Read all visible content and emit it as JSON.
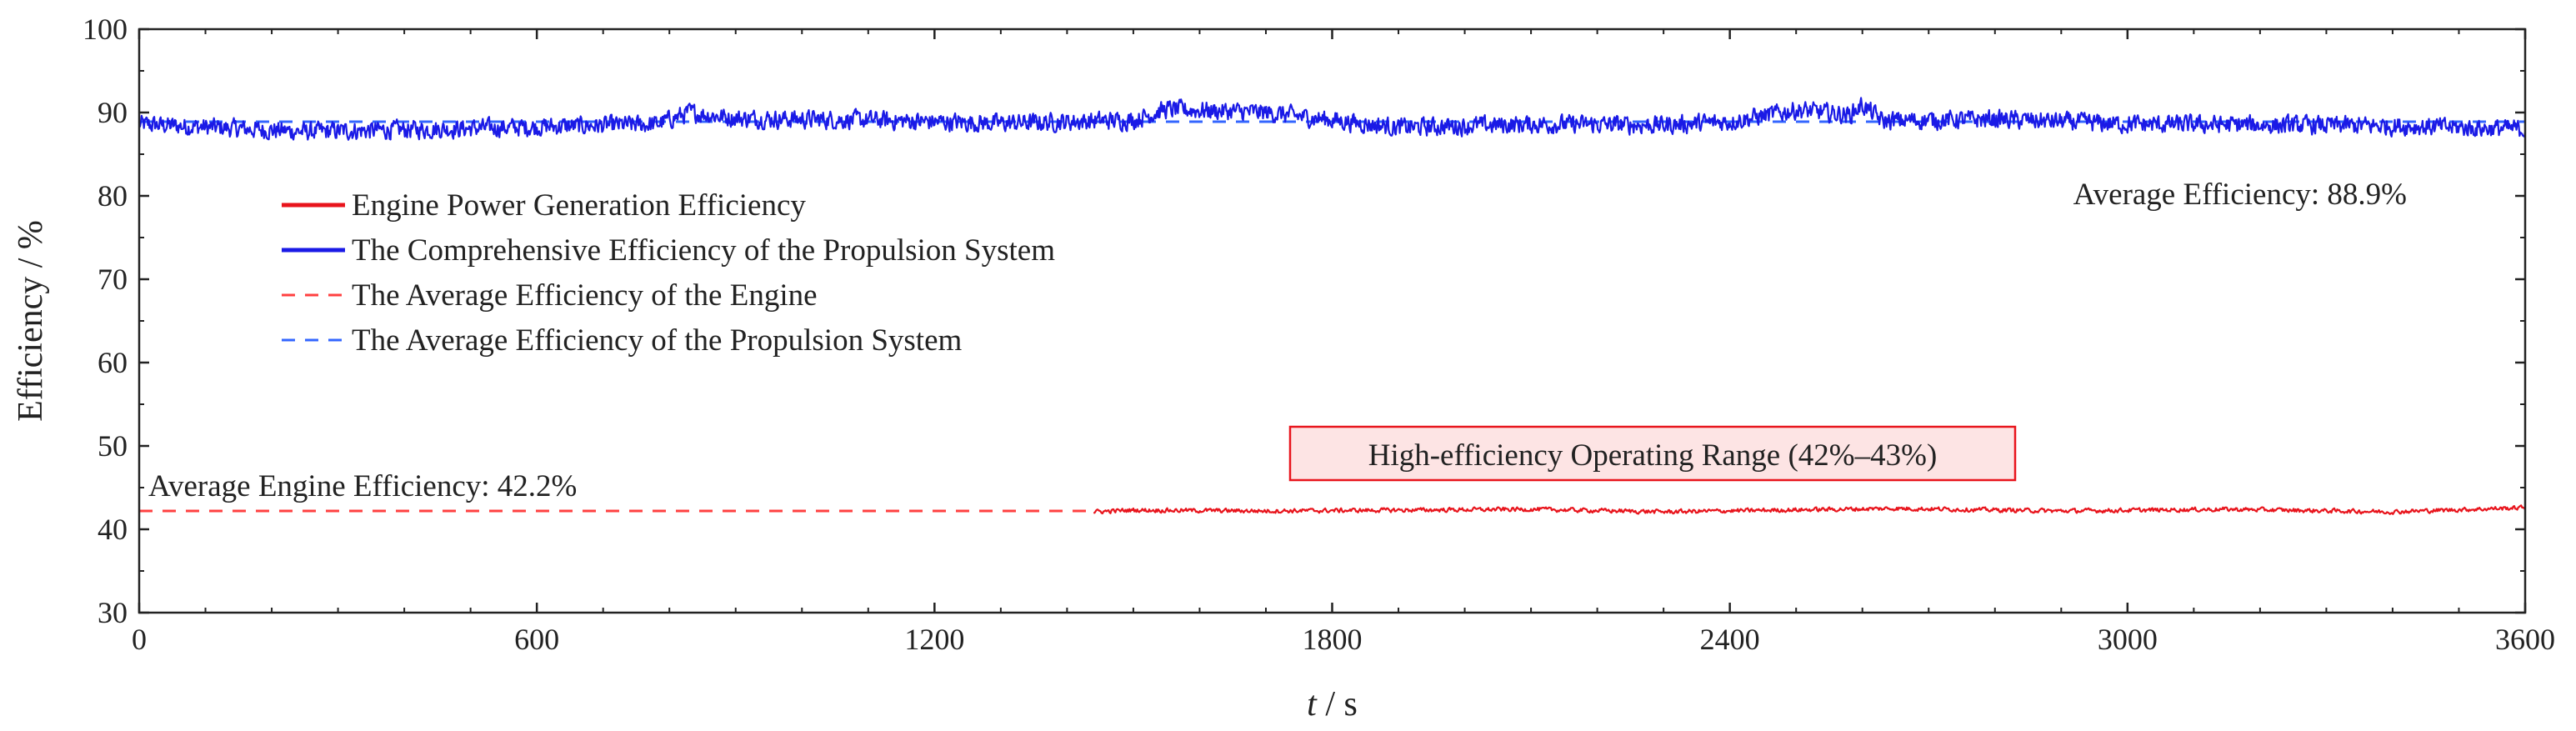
{
  "chart_data": {
    "type": "line",
    "xlabel_italic": "t",
    "xlabel_unit": " / s",
    "ylabel": "Efficiency / %",
    "xlim": [
      0,
      3600
    ],
    "ylim": [
      30,
      100
    ],
    "x_ticks": [
      0,
      600,
      1200,
      1800,
      2400,
      3000,
      3600
    ],
    "y_ticks": [
      30,
      40,
      50,
      60,
      70,
      80,
      90,
      100
    ],
    "grid": false,
    "legend_position": "upper-left",
    "series": [
      {
        "name": "Engine Power Generation Efficiency",
        "color": "#e8141c",
        "style": "solid",
        "x_range": [
          1440,
          3600
        ],
        "profile": [
          [
            1440,
            42.1
          ],
          [
            1500,
            42.3
          ],
          [
            1700,
            42.2
          ],
          [
            2100,
            42.4
          ],
          [
            2300,
            42.1
          ],
          [
            2650,
            42.5
          ],
          [
            2900,
            42.2
          ],
          [
            3150,
            42.4
          ],
          [
            3400,
            42.1
          ],
          [
            3600,
            42.6
          ]
        ],
        "noise_amplitude": 0.35
      },
      {
        "name": "The Comprehensive Efficiency of the Propulsion System",
        "color": "#1a1ae6",
        "style": "solid",
        "x_range": [
          0,
          3600
        ],
        "profile": [
          [
            0,
            88.6
          ],
          [
            250,
            87.7
          ],
          [
            500,
            88.1
          ],
          [
            780,
            88.6
          ],
          [
            830,
            90.0
          ],
          [
            900,
            89.3
          ],
          [
            1100,
            89.1
          ],
          [
            1300,
            88.7
          ],
          [
            1500,
            89.1
          ],
          [
            1550,
            90.4
          ],
          [
            1700,
            90.0
          ],
          [
            1800,
            89.1
          ],
          [
            1900,
            88.2
          ],
          [
            2100,
            88.6
          ],
          [
            2300,
            88.5
          ],
          [
            2400,
            88.9
          ],
          [
            2500,
            90.3
          ],
          [
            2580,
            89.7
          ],
          [
            2600,
            90.9
          ],
          [
            2630,
            89.0
          ],
          [
            2800,
            89.2
          ],
          [
            3000,
            88.6
          ],
          [
            3400,
            88.4
          ],
          [
            3600,
            88.0
          ]
        ],
        "noise_amplitude": 1.5
      },
      {
        "name": "The Average Efficiency of the Engine",
        "color": "#ff4040",
        "style": "dashed",
        "x_range": [
          0,
          1440
        ],
        "value": 42.2
      },
      {
        "name": "The Average Efficiency of the Propulsion System",
        "color": "#3366ff",
        "style": "dashed",
        "value": 88.9
      }
    ],
    "annotations": [
      {
        "text": "Average Efficiency: 88.9%",
        "color": "#1a1ae6"
      },
      {
        "text": "Average Engine Efficiency: 42.2%",
        "color": "#e8141c"
      },
      {
        "text": "High-efficiency Operating Range (42%–43%)",
        "color": "#222222",
        "box_border": "#e8141c",
        "box_fill": "#fde4e4"
      }
    ]
  }
}
